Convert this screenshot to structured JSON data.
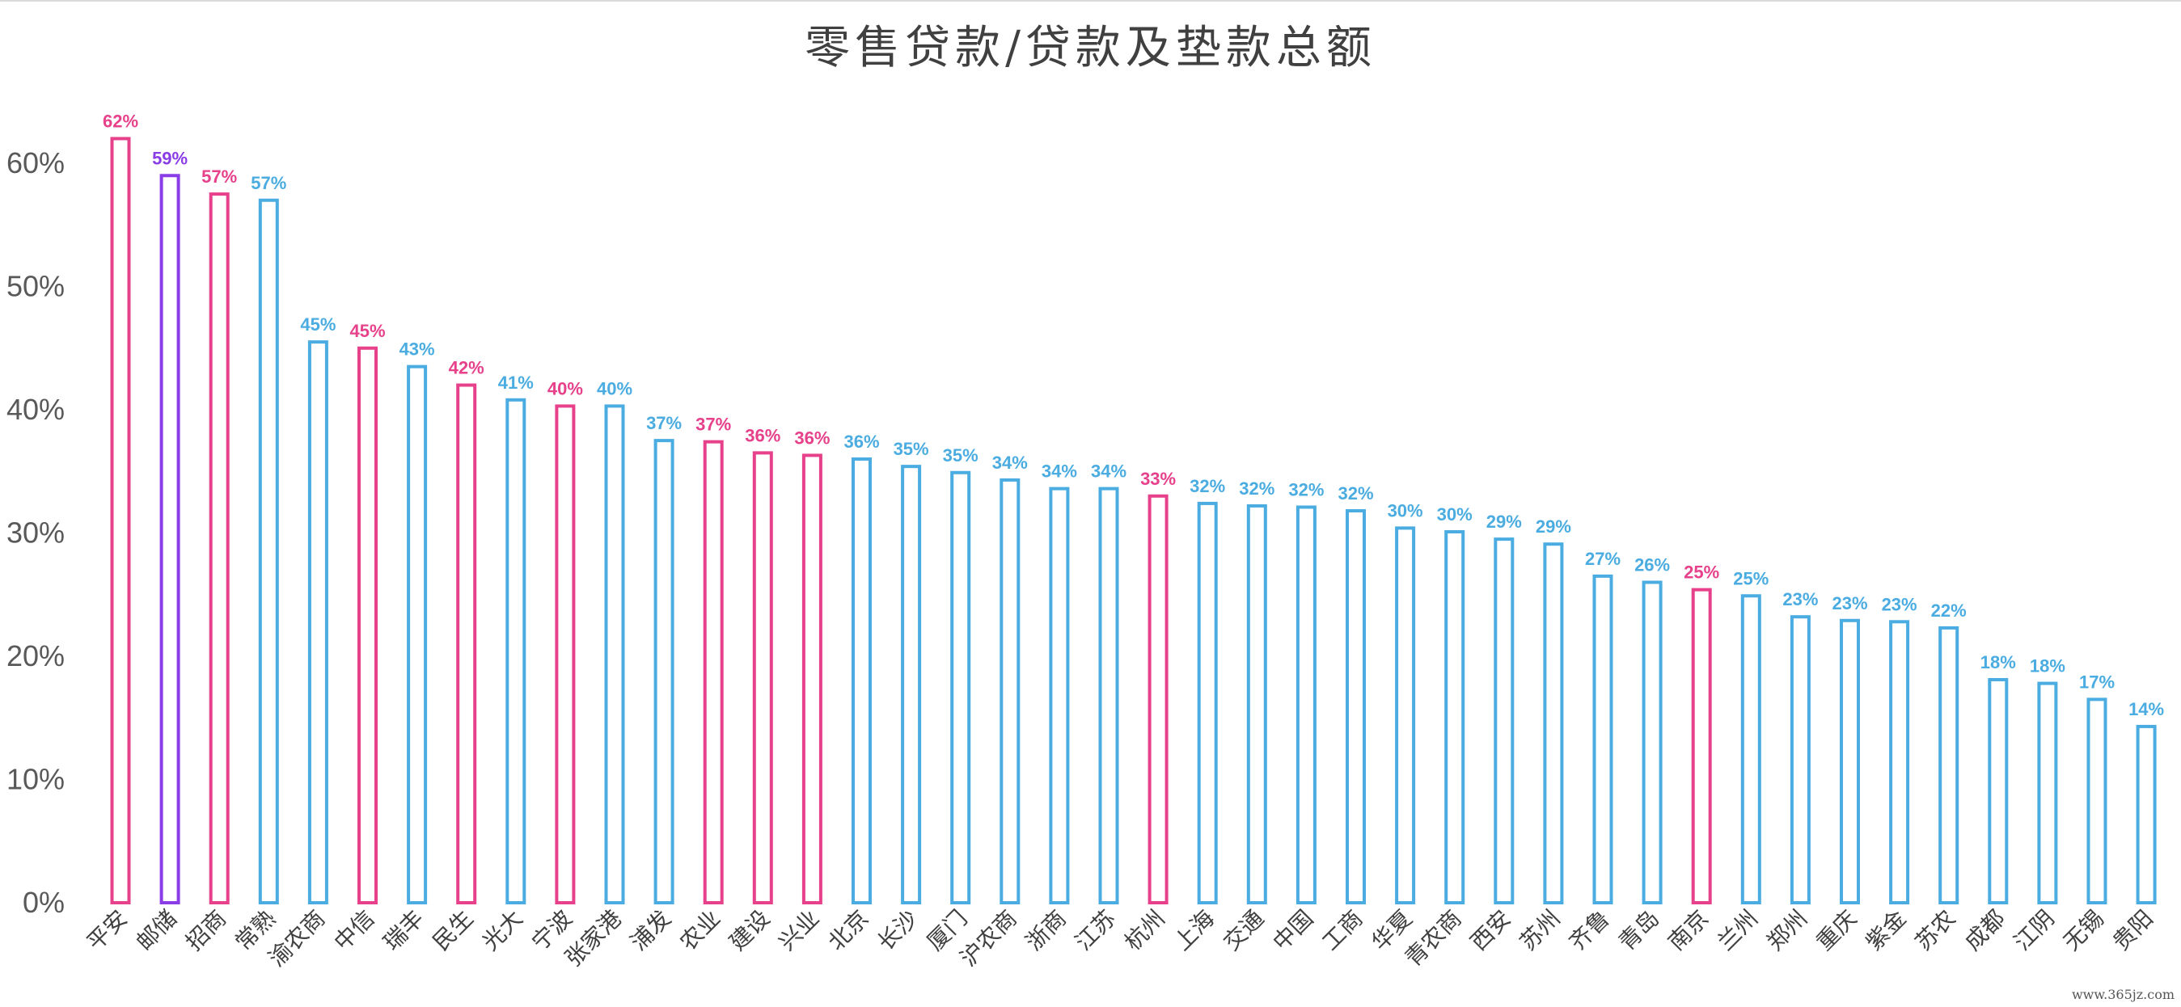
{
  "chart_data": {
    "type": "bar",
    "title": "零售贷款/贷款及垫款总额",
    "xlabel": "",
    "ylabel": "",
    "ylim": [
      0,
      0.65
    ],
    "yticks": [
      "0%",
      "10%",
      "20%",
      "30%",
      "40%",
      "50%",
      "60%"
    ],
    "grid": false,
    "legend": "none",
    "colors": {
      "blue": "#4aace0",
      "pink": "#e6418a",
      "purple": "#8a3de6"
    },
    "categories": [
      "平安",
      "邮储",
      "招商",
      "常熟",
      "渝农商",
      "中信",
      "瑞丰",
      "民生",
      "光大",
      "宁波",
      "张家港",
      "浦发",
      "农业",
      "建设",
      "兴业",
      "北京",
      "长沙",
      "厦门",
      "沪农商",
      "浙商",
      "江苏",
      "杭州",
      "上海",
      "交通",
      "中国",
      "工商",
      "华夏",
      "青农商",
      "西安",
      "苏州",
      "齐鲁",
      "青岛",
      "南京",
      "兰州",
      "郑州",
      "重庆",
      "紫金",
      "苏农",
      "成都",
      "江阴",
      "无锡",
      "贵阳"
    ],
    "values": [
      0.62,
      0.59,
      0.575,
      0.57,
      0.455,
      0.45,
      0.435,
      0.42,
      0.408,
      0.403,
      0.403,
      0.375,
      0.374,
      0.365,
      0.363,
      0.36,
      0.354,
      0.349,
      0.343,
      0.336,
      0.336,
      0.33,
      0.324,
      0.322,
      0.321,
      0.318,
      0.304,
      0.301,
      0.295,
      0.291,
      0.265,
      0.26,
      0.254,
      0.249,
      0.232,
      0.229,
      0.228,
      0.223,
      0.181,
      0.178,
      0.165,
      0.143
    ],
    "data_labels": [
      "62%",
      "59%",
      "57%",
      "57%",
      "45%",
      "45%",
      "43%",
      "42%",
      "41%",
      "40%",
      "40%",
      "37%",
      "37%",
      "36%",
      "36%",
      "36%",
      "35%",
      "35%",
      "34%",
      "34%",
      "34%",
      "33%",
      "32%",
      "32%",
      "32%",
      "32%",
      "30%",
      "30%",
      "29%",
      "29%",
      "27%",
      "26%",
      "25%",
      "25%",
      "23%",
      "23%",
      "23%",
      "22%",
      "18%",
      "18%",
      "17%",
      "14%"
    ],
    "bar_colors": [
      "pink",
      "purple",
      "pink",
      "blue",
      "blue",
      "pink",
      "blue",
      "pink",
      "blue",
      "pink",
      "blue",
      "blue",
      "pink",
      "pink",
      "pink",
      "blue",
      "blue",
      "blue",
      "blue",
      "blue",
      "blue",
      "pink",
      "blue",
      "blue",
      "blue",
      "blue",
      "blue",
      "blue",
      "blue",
      "blue",
      "blue",
      "blue",
      "pink",
      "blue",
      "blue",
      "blue",
      "blue",
      "blue",
      "blue",
      "blue",
      "blue",
      "blue"
    ]
  },
  "watermark": "www.365jz.com"
}
